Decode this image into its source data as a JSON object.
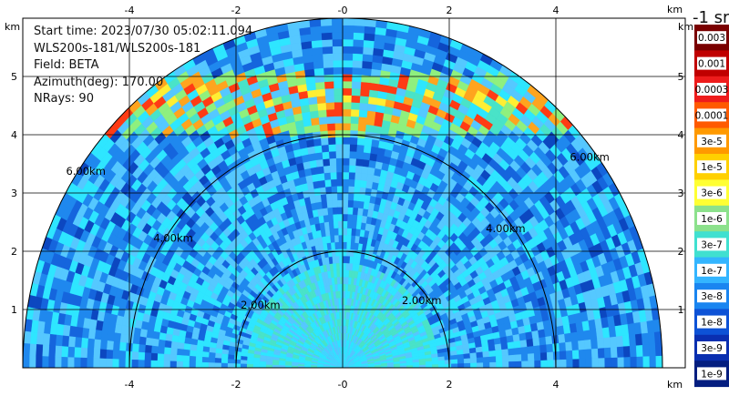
{
  "info": {
    "start_time": "Start time: 2023/07/30 05:02:11.094",
    "instrument": "WLS200s-181/WLS200s-181",
    "field": "Field: BETA",
    "azimuth": "Azimuth(deg): 170.00",
    "nrays": "NRays: 90"
  },
  "colorbar": {
    "title": "-1 sr",
    "labels": [
      "0.003",
      "0.001",
      "0.0003",
      "0.0001",
      "3e-5",
      "1e-5",
      "3e-6",
      "1e-6",
      "3e-7",
      "1e-7",
      "3e-8",
      "1e-8",
      "3e-9",
      "1e-9"
    ],
    "colors": [
      "#7a0000",
      "#c00000",
      "#ee1c1c",
      "#ff5a00",
      "#ff9900",
      "#ffd000",
      "#ffff33",
      "#8ce18c",
      "#40e0d0",
      "#33b5ff",
      "#1a85f0",
      "#0d52d6",
      "#0a2fb0",
      "#041e80"
    ]
  },
  "chart_data": {
    "type": "heatmap",
    "subtype": "RHI range-height polar plot",
    "x_unit": "km",
    "y_unit": "km",
    "xlim": [
      -6.3,
      6.1
    ],
    "ylim": [
      0,
      6.0
    ],
    "x_ticks": [
      -4,
      -2,
      0,
      2,
      4
    ],
    "x_tick_labels": [
      "-4",
      "-2",
      "-0",
      "2",
      "4"
    ],
    "y_ticks": [
      1,
      2,
      3,
      4,
      5
    ],
    "range_rings": [
      {
        "range_km": 2,
        "label": "2.00km"
      },
      {
        "range_km": 4,
        "label": "4.00km"
      },
      {
        "range_km": 6,
        "label": "6.00km"
      }
    ],
    "max_range_km": 6,
    "grid": true,
    "aerosol_layer": {
      "height_km": [
        4.0,
        5.0
      ],
      "dominant_value": "1e-5 to 1e-4"
    },
    "background_value": "3e-8"
  }
}
